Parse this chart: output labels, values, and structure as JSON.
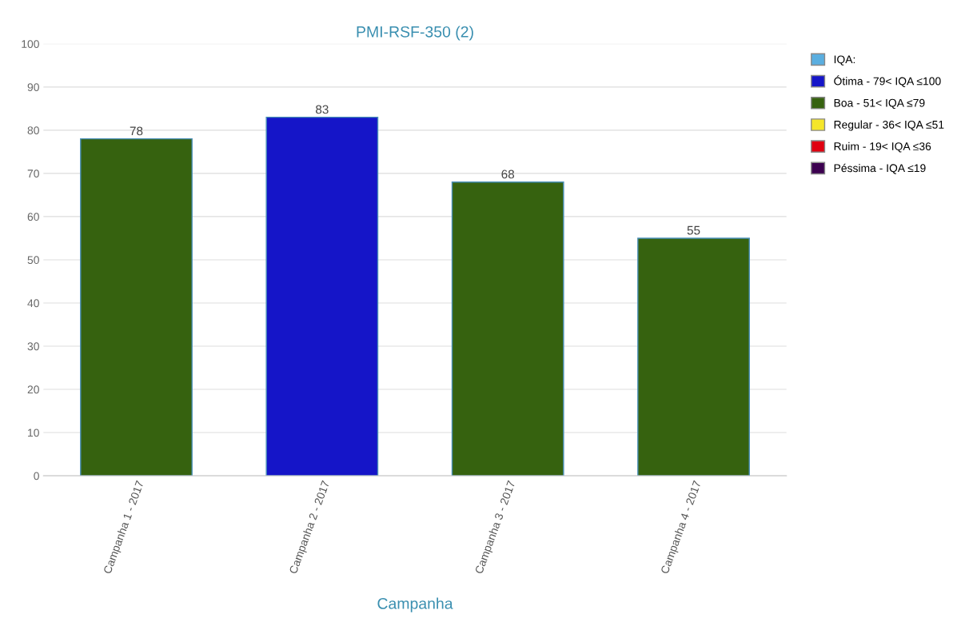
{
  "chart_data": {
    "type": "bar",
    "title": "PMI-RSF-350 (2)",
    "xlabel": "Campanha",
    "categories": [
      "Campanha 1 - 2017",
      "Campanha 2 - 2017",
      "Campanha 3 - 2017",
      "Campanha 4 - 2017"
    ],
    "stacked": true,
    "series": [
      {
        "name": "IQA:",
        "color": "#5aaee0",
        "values": [
          null,
          null,
          null,
          null
        ]
      },
      {
        "name": "Ótima - 79< IQA ≤100",
        "color": "#1515c8",
        "values": [
          null,
          83,
          null,
          null
        ]
      },
      {
        "name": "Boa - 51< IQA ≤79",
        "color": "#36620f",
        "values": [
          78,
          null,
          68,
          55
        ]
      },
      {
        "name": "Regular - 36< IQA ≤51",
        "color": "#f5e62a",
        "values": [
          null,
          null,
          null,
          null
        ]
      },
      {
        "name": "Ruim - 19< IQA ≤36",
        "color": "#e00010",
        "values": [
          null,
          null,
          null,
          null
        ]
      },
      {
        "name": "Péssima - IQA ≤19",
        "color": "#3c0050",
        "values": [
          null,
          null,
          null,
          null
        ]
      }
    ],
    "ylim": [
      0,
      100
    ],
    "yticks": [
      0,
      10,
      20,
      30,
      40,
      50,
      60,
      70,
      80,
      90,
      100
    ],
    "grid": "y",
    "legend": "top right",
    "data_labels": true
  }
}
